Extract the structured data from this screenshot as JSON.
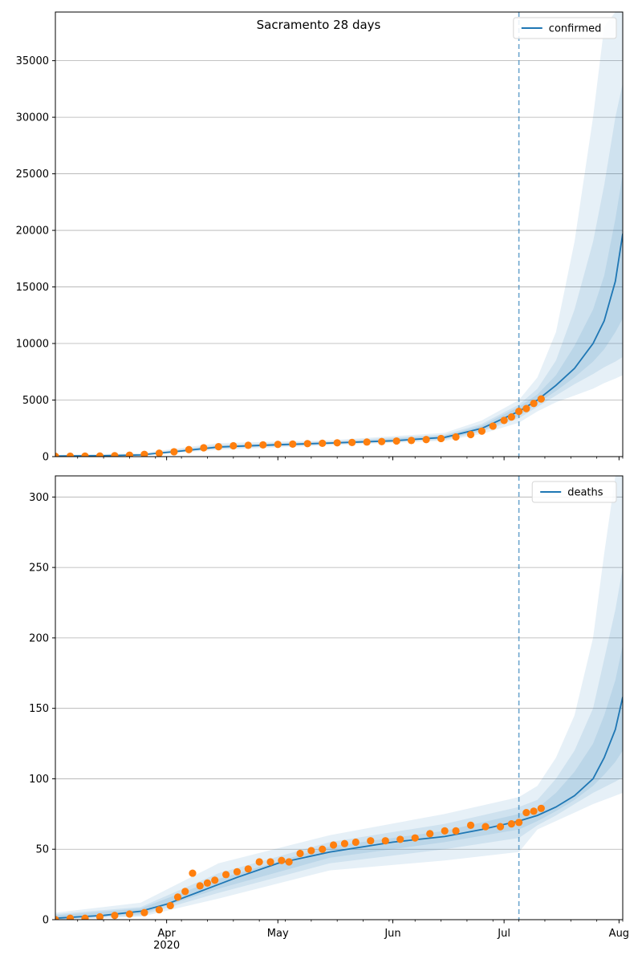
{
  "figure": {
    "title": "Sacramento 28 days"
  },
  "chart_data": [
    {
      "type": "line",
      "xaxis": {
        "start": "2020-03-02",
        "end": "2020-08-02",
        "major_ticks": [
          {
            "date": "2020-04-01",
            "label": "Apr",
            "sublabel": "2020"
          },
          {
            "date": "2020-05-01",
            "label": "May",
            "sublabel": ""
          },
          {
            "date": "2020-06-01",
            "label": "Jun",
            "sublabel": ""
          },
          {
            "date": "2020-07-01",
            "label": "Jul",
            "sublabel": ""
          },
          {
            "date": "2020-08-01",
            "label": "Aug",
            "sublabel": ""
          }
        ]
      },
      "ylim": [
        0,
        39300
      ],
      "yticks": [
        0,
        5000,
        10000,
        15000,
        20000,
        25000,
        30000,
        35000
      ],
      "grid": "y",
      "legend": {
        "position": "top-right",
        "entries": [
          "confirmed"
        ]
      },
      "forecast_start": "2020-07-05",
      "colors": {
        "line": "#1f77b4",
        "band": "#1f77b4",
        "observed": "#ff7f0e",
        "vline": "#1f77b4"
      },
      "series": [
        {
          "name": "confirmed",
          "kind": "forecast-median",
          "x": [
            "2020-03-02",
            "2020-03-15",
            "2020-03-25",
            "2020-04-05",
            "2020-04-15",
            "2020-05-01",
            "2020-05-15",
            "2020-06-01",
            "2020-06-15",
            "2020-06-25",
            "2020-07-05",
            "2020-07-10",
            "2020-07-15",
            "2020-07-20",
            "2020-07-25",
            "2020-07-28",
            "2020-07-31",
            "2020-08-02"
          ],
          "y": [
            50,
            80,
            150,
            500,
            850,
            1050,
            1200,
            1400,
            1700,
            2500,
            4000,
            5000,
            6300,
            7800,
            10000,
            12000,
            15500,
            19700
          ]
        },
        {
          "name": "band-outer",
          "kind": "band",
          "x": [
            "2020-03-02",
            "2020-03-25",
            "2020-04-15",
            "2020-05-15",
            "2020-06-15",
            "2020-06-25",
            "2020-07-05",
            "2020-07-10",
            "2020-07-15",
            "2020-07-20",
            "2020-07-25",
            "2020-07-28",
            "2020-07-31",
            "2020-08-02"
          ],
          "lower": [
            0,
            100,
            600,
            1000,
            1400,
            2000,
            3000,
            4000,
            4800,
            5400,
            6000,
            6500,
            6900,
            7200
          ],
          "upper": [
            150,
            300,
            1200,
            1450,
            2100,
            3200,
            5000,
            7000,
            11000,
            19000,
            30000,
            38000,
            39300,
            39300
          ]
        },
        {
          "name": "band-middle",
          "kind": "band",
          "x": [
            "2020-03-02",
            "2020-03-25",
            "2020-04-15",
            "2020-05-15",
            "2020-06-15",
            "2020-06-25",
            "2020-07-05",
            "2020-07-10",
            "2020-07-15",
            "2020-07-20",
            "2020-07-25",
            "2020-07-28",
            "2020-07-31",
            "2020-08-02"
          ],
          "lower": [
            10,
            120,
            700,
            1080,
            1500,
            2200,
            3400,
            4400,
            5400,
            6400,
            7300,
            7900,
            8400,
            8800
          ],
          "upper": [
            110,
            230,
            1050,
            1350,
            1950,
            2900,
            4600,
            6000,
            8500,
            13000,
            19000,
            24000,
            30000,
            33000
          ]
        },
        {
          "name": "band-inner",
          "kind": "band",
          "x": [
            "2020-03-02",
            "2020-03-25",
            "2020-04-15",
            "2020-05-15",
            "2020-06-15",
            "2020-06-25",
            "2020-07-05",
            "2020-07-10",
            "2020-07-15",
            "2020-07-20",
            "2020-07-25",
            "2020-07-28",
            "2020-07-31",
            "2020-08-02"
          ],
          "lower": [
            20,
            130,
            760,
            1130,
            1580,
            2300,
            3600,
            4700,
            5800,
            7000,
            8400,
            9500,
            11000,
            12200
          ],
          "upper": [
            90,
            200,
            960,
            1280,
            1850,
            2750,
            4400,
            5500,
            7200,
            9800,
            13000,
            16000,
            21000,
            25000
          ]
        },
        {
          "name": "observed",
          "kind": "points",
          "x": [
            "2020-03-02",
            "2020-03-06",
            "2020-03-10",
            "2020-03-14",
            "2020-03-18",
            "2020-03-22",
            "2020-03-26",
            "2020-03-30",
            "2020-04-03",
            "2020-04-07",
            "2020-04-11",
            "2020-04-15",
            "2020-04-19",
            "2020-04-23",
            "2020-04-27",
            "2020-05-01",
            "2020-05-05",
            "2020-05-09",
            "2020-05-13",
            "2020-05-17",
            "2020-05-21",
            "2020-05-25",
            "2020-05-29",
            "2020-06-02",
            "2020-06-06",
            "2020-06-10",
            "2020-06-14",
            "2020-06-18",
            "2020-06-22",
            "2020-06-25",
            "2020-06-28",
            "2020-07-01",
            "2020-07-03",
            "2020-07-05",
            "2020-07-07",
            "2020-07-09",
            "2020-07-11"
          ],
          "y": [
            30,
            35,
            45,
            55,
            80,
            130,
            200,
            300,
            430,
            620,
            780,
            880,
            960,
            1000,
            1040,
            1080,
            1110,
            1150,
            1180,
            1220,
            1250,
            1290,
            1330,
            1380,
            1430,
            1510,
            1600,
            1740,
            1950,
            2250,
            2700,
            3200,
            3500,
            4000,
            4250,
            4700,
            5100
          ]
        }
      ]
    },
    {
      "type": "line",
      "xaxis": {
        "start": "2020-03-02",
        "end": "2020-08-02",
        "major_ticks": [
          {
            "date": "2020-04-01",
            "label": "Apr",
            "sublabel": "2020"
          },
          {
            "date": "2020-05-01",
            "label": "May",
            "sublabel": ""
          },
          {
            "date": "2020-06-01",
            "label": "Jun",
            "sublabel": ""
          },
          {
            "date": "2020-07-01",
            "label": "Jul",
            "sublabel": ""
          },
          {
            "date": "2020-08-01",
            "label": "Aug",
            "sublabel": ""
          }
        ]
      },
      "ylim": [
        0,
        315
      ],
      "yticks": [
        0,
        50,
        100,
        150,
        200,
        250,
        300
      ],
      "grid": "y",
      "legend": {
        "position": "top-right",
        "entries": [
          "deaths"
        ]
      },
      "forecast_start": "2020-07-05",
      "colors": {
        "line": "#1f77b4",
        "band": "#1f77b4",
        "observed": "#ff7f0e",
        "vline": "#1f77b4"
      },
      "series": [
        {
          "name": "deaths",
          "kind": "forecast-median",
          "x": [
            "2020-03-02",
            "2020-03-15",
            "2020-03-25",
            "2020-04-01",
            "2020-04-10",
            "2020-04-20",
            "2020-05-01",
            "2020-05-15",
            "2020-06-01",
            "2020-06-15",
            "2020-06-25",
            "2020-07-05",
            "2020-07-10",
            "2020-07-15",
            "2020-07-20",
            "2020-07-25",
            "2020-07-28",
            "2020-07-31",
            "2020-08-02"
          ],
          "y": [
            1,
            3,
            6,
            11,
            20,
            30,
            40,
            48,
            55,
            59,
            64,
            70,
            74,
            80,
            88,
            100,
            115,
            135,
            158
          ]
        },
        {
          "name": "band-outer",
          "kind": "band",
          "x": [
            "2020-03-02",
            "2020-03-25",
            "2020-04-15",
            "2020-05-15",
            "2020-06-15",
            "2020-07-05",
            "2020-07-10",
            "2020-07-15",
            "2020-07-20",
            "2020-07-25",
            "2020-07-28",
            "2020-07-31",
            "2020-08-02"
          ],
          "lower": [
            0,
            2,
            15,
            35,
            42,
            48,
            64,
            70,
            76,
            82,
            85,
            88,
            90
          ],
          "upper": [
            5,
            12,
            40,
            60,
            75,
            87,
            95,
            115,
            145,
            200,
            260,
            315,
            315
          ]
        },
        {
          "name": "band-middle",
          "kind": "band",
          "x": [
            "2020-03-02",
            "2020-03-25",
            "2020-04-15",
            "2020-05-15",
            "2020-06-15",
            "2020-07-05",
            "2020-07-10",
            "2020-07-15",
            "2020-07-20",
            "2020-07-25",
            "2020-07-28",
            "2020-07-31",
            "2020-08-02"
          ],
          "lower": [
            0,
            3,
            19,
            40,
            50,
            58,
            67,
            74,
            82,
            90,
            94,
            98,
            101
          ],
          "upper": [
            4,
            9,
            33,
            55,
            68,
            80,
            85,
            100,
            120,
            150,
            185,
            220,
            250
          ]
        },
        {
          "name": "band-inner",
          "kind": "band",
          "x": [
            "2020-03-02",
            "2020-03-25",
            "2020-04-15",
            "2020-05-15",
            "2020-06-15",
            "2020-07-05",
            "2020-07-10",
            "2020-07-15",
            "2020-07-20",
            "2020-07-25",
            "2020-07-28",
            "2020-07-31",
            "2020-08-02"
          ],
          "lower": [
            1,
            4,
            22,
            44,
            55,
            64,
            70,
            77,
            85,
            95,
            103,
            112,
            120
          ],
          "upper": [
            3,
            8,
            29,
            52,
            63,
            75,
            79,
            90,
            105,
            125,
            145,
            170,
            195
          ]
        },
        {
          "name": "observed",
          "kind": "points",
          "x": [
            "2020-03-02",
            "2020-03-06",
            "2020-03-10",
            "2020-03-14",
            "2020-03-18",
            "2020-03-22",
            "2020-03-26",
            "2020-03-30",
            "2020-04-02",
            "2020-04-04",
            "2020-04-06",
            "2020-04-08",
            "2020-04-10",
            "2020-04-12",
            "2020-04-14",
            "2020-04-17",
            "2020-04-20",
            "2020-04-23",
            "2020-04-26",
            "2020-04-29",
            "2020-05-02",
            "2020-05-04",
            "2020-05-07",
            "2020-05-10",
            "2020-05-13",
            "2020-05-16",
            "2020-05-19",
            "2020-05-22",
            "2020-05-26",
            "2020-05-30",
            "2020-06-03",
            "2020-06-07",
            "2020-06-11",
            "2020-06-15",
            "2020-06-18",
            "2020-06-22",
            "2020-06-26",
            "2020-06-30",
            "2020-07-03",
            "2020-07-05",
            "2020-07-07",
            "2020-07-09",
            "2020-07-11"
          ],
          "y": [
            0,
            1,
            1,
            2,
            3,
            4,
            5,
            7,
            10,
            16,
            20,
            33,
            24,
            26,
            28,
            32,
            34,
            36,
            41,
            41,
            42,
            41,
            47,
            49,
            50,
            53,
            54,
            55,
            56,
            56,
            57,
            58,
            61,
            63,
            63,
            67,
            66,
            66,
            68,
            69,
            76,
            77,
            79
          ]
        }
      ]
    }
  ]
}
